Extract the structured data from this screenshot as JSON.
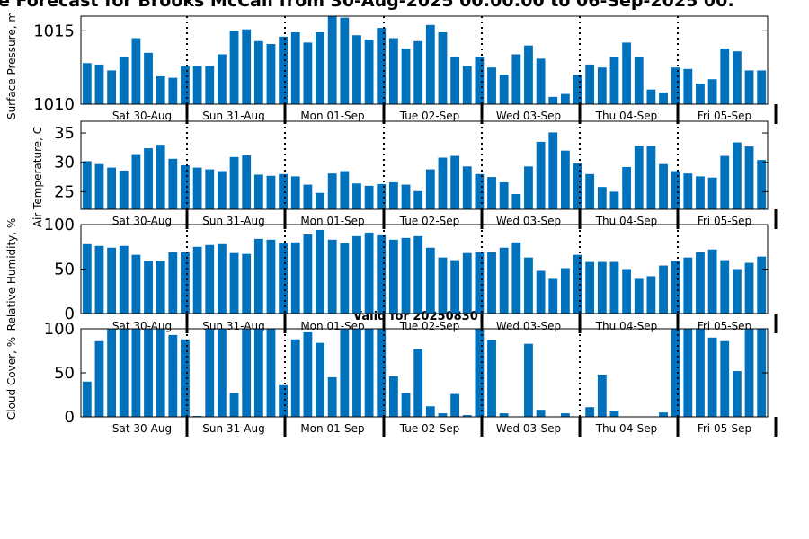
{
  "title": "e Forecast for Brooks McCall from 30-Aug-2025 00:00:00 to 06-Sep-2025 00:",
  "subtitle": "Valid for 20250830",
  "colors": {
    "bar": "#0072bd",
    "axis": "#000000",
    "divider": "#000000"
  },
  "day_labels": [
    "Sat 30-Aug",
    "Sun 31-Aug",
    "Mon 01-Sep",
    "Tue 02-Sep",
    "Wed 03-Sep",
    "Thu 04-Sep",
    "Fri 05-Sep"
  ],
  "chart_data": [
    {
      "type": "bar",
      "ylabel": "Surface Pressure, m",
      "ylim": [
        1010,
        1016
      ],
      "yticks": [
        1010,
        1015
      ],
      "grid": false,
      "values": [
        1012.8,
        1012.7,
        1012.3,
        1013.2,
        1014.5,
        1013.5,
        1011.9,
        1011.8,
        1012.6,
        1012.6,
        1012.6,
        1013.4,
        1015.0,
        1015.1,
        1014.3,
        1014.1,
        1014.6,
        1014.9,
        1014.2,
        1014.9,
        1016.0,
        1015.9,
        1014.7,
        1014.4,
        1015.2,
        1014.5,
        1013.8,
        1014.3,
        1015.4,
        1014.9,
        1013.2,
        1012.6,
        1013.2,
        1012.5,
        1012.0,
        1013.4,
        1014.0,
        1013.1,
        1010.5,
        1010.7,
        1012.0,
        1012.7,
        1012.5,
        1013.2,
        1014.2,
        1013.2,
        1011.0,
        1010.8,
        1012.5,
        1012.4,
        1011.4,
        1011.7,
        1013.8,
        1013.6,
        1012.3,
        1012.3
      ]
    },
    {
      "type": "bar",
      "ylabel": "Air Temperature, C",
      "ylim": [
        22,
        37
      ],
      "yticks": [
        25,
        30,
        35
      ],
      "grid": false,
      "values": [
        30.2,
        29.7,
        29.1,
        28.6,
        31.4,
        32.4,
        33.0,
        30.6,
        29.5,
        29.1,
        28.8,
        28.5,
        30.9,
        31.2,
        27.9,
        27.7,
        28.0,
        27.6,
        26.2,
        24.8,
        28.1,
        28.5,
        26.4,
        26.0,
        26.3,
        26.6,
        26.2,
        25.1,
        28.8,
        30.8,
        31.1,
        29.3,
        28.0,
        27.5,
        26.6,
        24.6,
        29.3,
        33.5,
        35.1,
        32.0,
        29.8,
        28.0,
        25.8,
        25.0,
        29.2,
        32.8,
        32.8,
        29.7,
        28.5,
        28.1,
        27.6,
        27.4,
        31.1,
        33.4,
        32.7,
        30.4
      ]
    },
    {
      "type": "bar",
      "ylabel": "Relative Humidity, %",
      "ylim": [
        0,
        100
      ],
      "yticks": [
        0,
        50,
        100
      ],
      "grid": false,
      "values": [
        78,
        76,
        74,
        76,
        66,
        59,
        59,
        69,
        69,
        75,
        77,
        78,
        68,
        67,
        84,
        83,
        79,
        80,
        89,
        94,
        83,
        79,
        87,
        91,
        88,
        83,
        85,
        87,
        74,
        63,
        60,
        68,
        69,
        69,
        74,
        80,
        63,
        48,
        39,
        51,
        66,
        58,
        58,
        58,
        50,
        39,
        42,
        54,
        59,
        63,
        69,
        72,
        60,
        50,
        57,
        64
      ]
    },
    {
      "type": "bar",
      "ylabel": "Cloud Cover, %",
      "ylim": [
        0,
        100
      ],
      "yticks": [
        0,
        50,
        100
      ],
      "grid": false,
      "values": [
        40,
        86,
        100,
        100,
        100,
        100,
        100,
        93,
        88,
        1,
        100,
        100,
        27,
        100,
        100,
        100,
        36,
        88,
        96,
        84,
        45,
        100,
        100,
        100,
        100,
        46,
        27,
        77,
        12,
        4,
        26,
        2,
        100,
        87,
        4,
        0,
        83,
        8,
        0,
        4,
        0,
        11,
        48,
        7,
        0,
        0,
        0,
        5,
        100,
        100,
        100,
        90,
        86,
        52,
        100,
        100
      ]
    }
  ]
}
